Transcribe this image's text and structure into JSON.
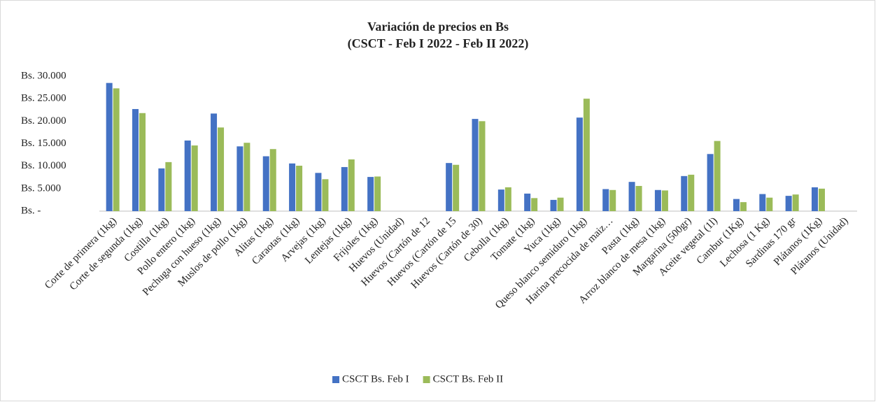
{
  "chart_data": {
    "type": "bar",
    "title": [
      "Variación de precios en Bs",
      "(CSCT - Feb I 2022 - Feb II 2022)"
    ],
    "categories": [
      "Corte de primera (1kg)",
      "Corte de segunda (1kg)",
      "Costilla (1kg)",
      "Pollo entero (1kg)",
      "Pechuga con hueso (1kg)",
      "Muslos de pollo (1kg)",
      "Alitas (1kg)",
      "Caraotas (1kg)",
      "Arvejas (1kg)",
      "Lentejas (1kg)",
      "Frijoles (1kg)",
      "Huevos (Unidad)",
      "Huevos (Cartón de 12",
      "Huevos (Cartón de 15",
      "Huevos (Cartón de 30)",
      "Cebolla (1kg)",
      "Tomate (1kg)",
      "Yuca (1kg)",
      "Queso blanco semiduro (1kg)",
      "Harina precocida de maiz…",
      "Pasta (1kg)",
      "Arroz blanco de mesa (1kg)",
      "Margarina (500gr)",
      "Aceite vegetal (1l)",
      "Cambur (1Kg)",
      "Lechosa (1 Kg)",
      "Sardinas 170 gr",
      "Plátanos (1Kg)",
      "Plátanos (Unidad)"
    ],
    "series": [
      {
        "name": "CSCT Bs. Feb I",
        "color": "#4472c4",
        "values": [
          28500,
          22700,
          9500,
          15700,
          21700,
          14400,
          12200,
          10600,
          8500,
          9800,
          7600,
          null,
          null,
          10700,
          20500,
          4800,
          3900,
          2500,
          20800,
          4900,
          6500,
          4700,
          7800,
          12700,
          2700,
          3800,
          3400,
          5300,
          null
        ]
      },
      {
        "name": "CSCT Bs. Feb II",
        "color": "#9bbb59",
        "values": [
          27300,
          21800,
          10900,
          14600,
          18600,
          15200,
          13800,
          10100,
          7100,
          11500,
          7700,
          null,
          null,
          10300,
          20000,
          5300,
          2900,
          3000,
          25000,
          4700,
          5600,
          4600,
          8100,
          15600,
          2000,
          3000,
          3700,
          5000,
          null
        ]
      }
    ],
    "ylim": [
      0,
      30000
    ],
    "yticks": [
      {
        "value": 0,
        "label": "Bs. -"
      },
      {
        "value": 5000,
        "label": "Bs. 5.000"
      },
      {
        "value": 10000,
        "label": "Bs. 10.000"
      },
      {
        "value": 15000,
        "label": "Bs. 15.000"
      },
      {
        "value": 20000,
        "label": "Bs. 20.000"
      },
      {
        "value": 25000,
        "label": "Bs. 25.000"
      },
      {
        "value": 30000,
        "label": "Bs. 30.000"
      }
    ],
    "grid": false,
    "legend": "bottom"
  }
}
